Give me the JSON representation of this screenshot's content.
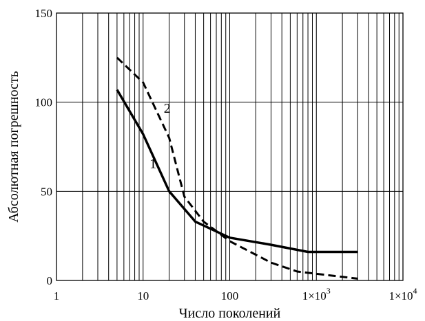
{
  "chart_data": {
    "type": "line",
    "title": "",
    "xlabel": "Число поколений",
    "ylabel": "Абсолютная погрешность",
    "xscale": "log",
    "xlim": [
      1,
      10000
    ],
    "ylim": [
      0,
      150
    ],
    "grid": true,
    "x_ticks": [
      {
        "value": 1,
        "label": "1"
      },
      {
        "value": 10,
        "label": "10"
      },
      {
        "value": 100,
        "label": "100"
      },
      {
        "value": 1000,
        "label": "1×10",
        "exp": "3"
      },
      {
        "value": 10000,
        "label": "1×10",
        "exp": "4"
      }
    ],
    "y_ticks": [
      {
        "value": 0,
        "label": "0"
      },
      {
        "value": 50,
        "label": "50"
      },
      {
        "value": 100,
        "label": "100"
      },
      {
        "value": 150,
        "label": "150"
      }
    ],
    "series": [
      {
        "name": "1",
        "style": "solid",
        "label_at": {
          "x": 13,
          "y": 63
        },
        "x": [
          5,
          10,
          20,
          40,
          100,
          300,
          800,
          3000
        ],
        "y": [
          107,
          82,
          50,
          33,
          24,
          20,
          16,
          16
        ]
      },
      {
        "name": "2",
        "style": "dashed",
        "label_at": {
          "x": 19,
          "y": 94
        },
        "x": [
          5,
          10,
          20,
          30,
          50,
          100,
          300,
          600,
          2000,
          3000
        ],
        "y": [
          125,
          111,
          80,
          47,
          33,
          22,
          10,
          5,
          2,
          1
        ]
      }
    ]
  }
}
